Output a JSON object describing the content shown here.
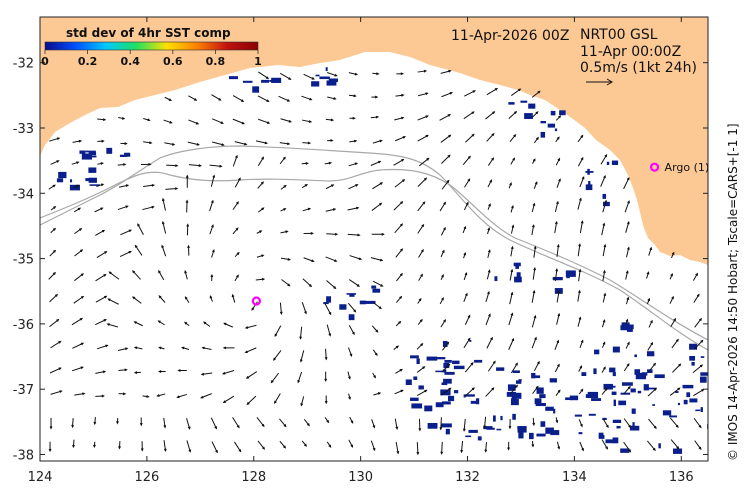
{
  "title": "11-Apr-2026 00Z",
  "product": {
    "line1": "NRT00 GSL",
    "line2": "11-Apr 00:00Z",
    "line3": "0.5m/s (1kt 24h)"
  },
  "colorbar": {
    "title": "std dev of 4hr SST comp",
    "ticks": [
      "0",
      "0.2",
      "0.4",
      "0.6",
      "0.8",
      "1"
    ],
    "stops": [
      "#0a0a8c",
      "#0050ff",
      "#00c8ff",
      "#20e060",
      "#ffe000",
      "#ff8000",
      "#c01010",
      "#8b0000"
    ]
  },
  "credit": "© IMOS 14-Apr-2026 14:50 Hobart; Tscale=CARS+[-1 1]",
  "axes": {
    "x_ticks": [
      "124",
      "126",
      "128",
      "130",
      "132",
      "134",
      "136"
    ],
    "y_ticks": [
      "-32",
      "-33",
      "-34",
      "-35",
      "-36",
      "-37",
      "-38"
    ]
  },
  "extent": {
    "lon": [
      124,
      136.5
    ],
    "lat": [
      -38.1,
      -31.3
    ]
  },
  "markers": [
    {
      "label": "Argo (1)",
      "lon": 135.5,
      "lat": -33.6
    },
    {
      "label": "",
      "lon": 128.05,
      "lat": -35.65
    }
  ],
  "colors": {
    "land": "#fcc995",
    "ocean": "#ffffff",
    "marker": "#ff00ff",
    "patch": "#0b1f8c",
    "contour": "#a8a8a8"
  }
}
